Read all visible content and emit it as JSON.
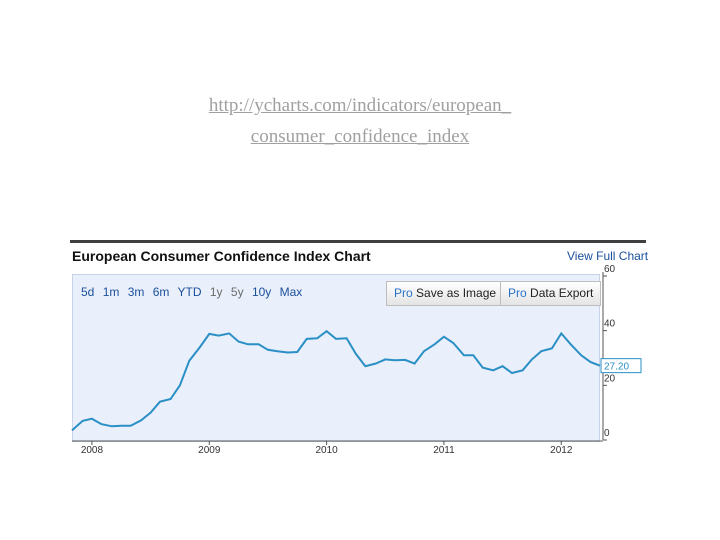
{
  "link": {
    "line1": "http://ycharts.com/indicators/european_",
    "line2": "consumer_confidence_index"
  },
  "header": {
    "title": "European Consumer Confidence Index Chart",
    "view_full_label": "View Full Chart"
  },
  "range_buttons": [
    "5d",
    "1m",
    "3m",
    "6m",
    "YTD",
    "1y",
    "5y",
    "10y",
    "Max"
  ],
  "actions": {
    "save_pro": "Pro",
    "save_label": "Save as Image",
    "export_pro": "Pro",
    "export_label": "Data Export"
  },
  "colors": {
    "line": "#2a8fc4",
    "plot_bg": "#eaf0fb",
    "link": "#1a4f9c"
  },
  "chart_data": {
    "type": "line",
    "title": "European Consumer Confidence Index Chart",
    "xlabel": "",
    "ylabel": "",
    "x_ticks": [
      "2008",
      "2009",
      "2010",
      "2011",
      "2012"
    ],
    "y_ticks": [
      0,
      20,
      40,
      60
    ],
    "ylim": [
      0,
      60
    ],
    "xlim": [
      2007.83,
      2012.33
    ],
    "last_value_label": "27.20",
    "grid": false,
    "series": [
      {
        "x": [
          2007.83,
          2007.92,
          2008.0,
          2008.08,
          2008.17,
          2008.25,
          2008.33,
          2008.42,
          2008.5,
          2008.58,
          2008.67,
          2008.75,
          2008.83,
          2008.92,
          2009.0,
          2009.08,
          2009.17,
          2009.25,
          2009.33,
          2009.42,
          2009.5,
          2009.58,
          2009.67,
          2009.75,
          2009.83,
          2009.92,
          2010.0,
          2010.08,
          2010.17,
          2010.25,
          2010.33,
          2010.42,
          2010.5,
          2010.58,
          2010.67,
          2010.75,
          2010.83,
          2010.92,
          2011.0,
          2011.08,
          2011.17,
          2011.25,
          2011.33,
          2011.42,
          2011.5,
          2011.58,
          2011.67,
          2011.75,
          2011.83,
          2011.92,
          2012.0,
          2012.08,
          2012.17,
          2012.25,
          2012.33
        ],
        "values": [
          3.5,
          7.0,
          7.8,
          5.8,
          5.0,
          5.2,
          5.2,
          7.2,
          10.0,
          14.0,
          15.0,
          20.0,
          29.0,
          34.0,
          38.8,
          38.2,
          39.0,
          36.0,
          35.0,
          35.0,
          33.0,
          32.5,
          32.0,
          32.2,
          37.0,
          37.2,
          39.8,
          37.0,
          37.2,
          31.5,
          27.0,
          28.0,
          29.5,
          29.2,
          29.3,
          28.0,
          32.5,
          35.0,
          37.8,
          35.5,
          31.0,
          31.0,
          26.5,
          25.5,
          27.0,
          24.5,
          25.5,
          29.5,
          32.5,
          33.5,
          39.0,
          35.0,
          31.0,
          28.5,
          27.2
        ]
      }
    ]
  }
}
